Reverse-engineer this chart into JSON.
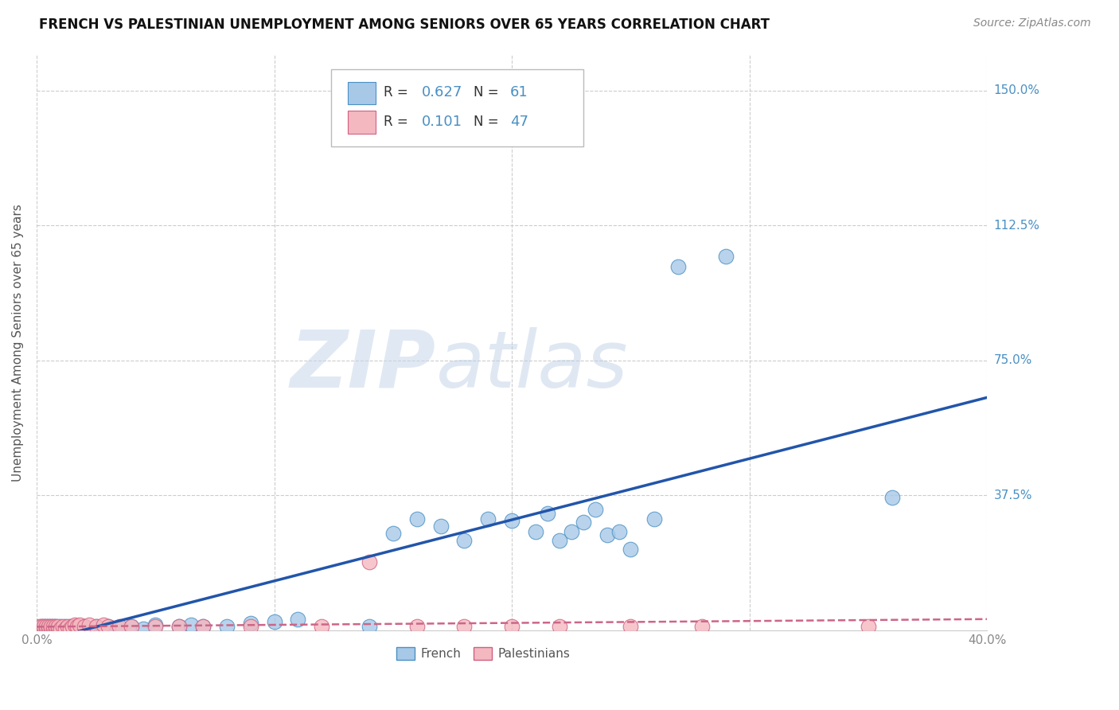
{
  "title": "FRENCH VS PALESTINIAN UNEMPLOYMENT AMONG SENIORS OVER 65 YEARS CORRELATION CHART",
  "source": "Source: ZipAtlas.com",
  "ylabel": "Unemployment Among Seniors over 65 years",
  "xlim": [
    0.0,
    0.4
  ],
  "ylim": [
    0.0,
    1.6
  ],
  "xticks": [
    0.0,
    0.1,
    0.2,
    0.3,
    0.4
  ],
  "xtick_labels": [
    "0.0%",
    "",
    "",
    "",
    "40.0%"
  ],
  "yticks": [
    0.0,
    0.375,
    0.75,
    1.125,
    1.5
  ],
  "ytick_labels": [
    "",
    "37.5%",
    "75.0%",
    "112.5%",
    "150.0%"
  ],
  "french_R": 0.627,
  "french_N": 61,
  "palestinian_R": 0.101,
  "palestinian_N": 47,
  "french_color": "#a8c8e8",
  "french_edge": "#4a90c4",
  "palestinian_color": "#f4b8c0",
  "palestinian_edge": "#d06080",
  "french_line_color": "#2255aa",
  "palestinian_line_color": "#cc6688",
  "legend_text_color": "#4a90c4",
  "right_tick_color": "#4a90c4",
  "watermark_color": "#ccd8e8",
  "background_color": "#ffffff",
  "grid_color": "#cccccc",
  "french_x": [
    0.001,
    0.002,
    0.002,
    0.003,
    0.003,
    0.004,
    0.004,
    0.005,
    0.005,
    0.006,
    0.006,
    0.007,
    0.007,
    0.008,
    0.008,
    0.009,
    0.01,
    0.01,
    0.011,
    0.012,
    0.013,
    0.014,
    0.015,
    0.016,
    0.018,
    0.02,
    0.022,
    0.025,
    0.028,
    0.03,
    0.035,
    0.04,
    0.045,
    0.05,
    0.06,
    0.065,
    0.07,
    0.08,
    0.09,
    0.1,
    0.11,
    0.14,
    0.15,
    0.16,
    0.17,
    0.18,
    0.19,
    0.2,
    0.21,
    0.215,
    0.22,
    0.225,
    0.23,
    0.235,
    0.24,
    0.245,
    0.25,
    0.26,
    0.27,
    0.29,
    0.36
  ],
  "french_y": [
    0.005,
    0.005,
    0.01,
    0.005,
    0.01,
    0.005,
    0.01,
    0.005,
    0.01,
    0.005,
    0.01,
    0.005,
    0.01,
    0.005,
    0.01,
    0.005,
    0.005,
    0.01,
    0.005,
    0.01,
    0.005,
    0.01,
    0.005,
    0.01,
    0.005,
    0.01,
    0.005,
    0.01,
    0.005,
    0.01,
    0.005,
    0.01,
    0.005,
    0.015,
    0.01,
    0.015,
    0.01,
    0.01,
    0.02,
    0.025,
    0.03,
    0.01,
    0.27,
    0.31,
    0.29,
    0.25,
    0.31,
    0.305,
    0.275,
    0.325,
    0.25,
    0.275,
    0.3,
    0.335,
    0.265,
    0.275,
    0.225,
    0.31,
    1.01,
    1.04,
    0.37
  ],
  "palestinian_x": [
    0.001,
    0.001,
    0.002,
    0.002,
    0.003,
    0.003,
    0.004,
    0.004,
    0.005,
    0.005,
    0.006,
    0.006,
    0.007,
    0.007,
    0.008,
    0.008,
    0.009,
    0.009,
    0.01,
    0.011,
    0.012,
    0.013,
    0.014,
    0.015,
    0.016,
    0.017,
    0.018,
    0.02,
    0.022,
    0.025,
    0.028,
    0.03,
    0.035,
    0.04,
    0.05,
    0.06,
    0.07,
    0.09,
    0.12,
    0.14,
    0.16,
    0.18,
    0.2,
    0.22,
    0.25,
    0.28,
    0.35
  ],
  "palestinian_y": [
    0.005,
    0.01,
    0.005,
    0.01,
    0.005,
    0.01,
    0.005,
    0.01,
    0.005,
    0.01,
    0.005,
    0.01,
    0.005,
    0.01,
    0.005,
    0.01,
    0.005,
    0.01,
    0.005,
    0.01,
    0.005,
    0.01,
    0.005,
    0.01,
    0.015,
    0.01,
    0.015,
    0.01,
    0.015,
    0.01,
    0.015,
    0.01,
    0.01,
    0.01,
    0.01,
    0.01,
    0.01,
    0.01,
    0.01,
    0.19,
    0.01,
    0.01,
    0.01,
    0.01,
    0.01,
    0.01,
    0.01
  ],
  "watermark_zip": "ZIP",
  "watermark_atlas": "atlas"
}
